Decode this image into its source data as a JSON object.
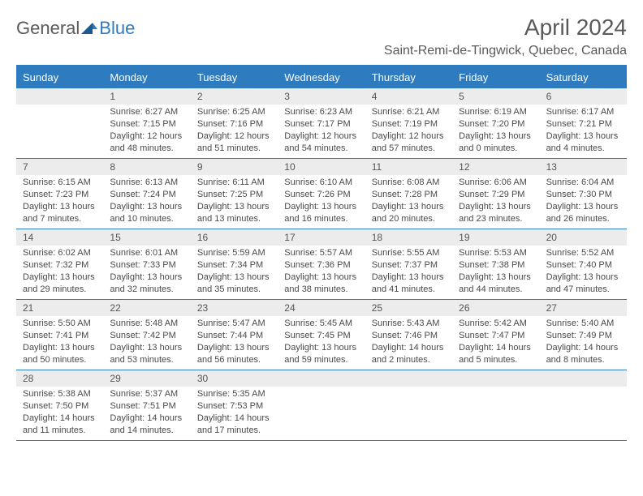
{
  "logo": {
    "part1": "General",
    "part2": "Blue"
  },
  "title": "April 2024",
  "location": "Saint-Remi-de-Tingwick, Quebec, Canada",
  "colors": {
    "accent": "#2e7bc0",
    "header_bg": "#2e7bc0",
    "header_text": "#ffffff",
    "daynum_bg": "#ececec",
    "text": "#4a4a4a",
    "border": "#2e7bc0"
  },
  "day_names": [
    "Sunday",
    "Monday",
    "Tuesday",
    "Wednesday",
    "Thursday",
    "Friday",
    "Saturday"
  ],
  "weeks": [
    [
      null,
      {
        "n": "1",
        "sr": "Sunrise: 6:27 AM",
        "ss": "Sunset: 7:15 PM",
        "dl": "Daylight: 12 hours and 48 minutes."
      },
      {
        "n": "2",
        "sr": "Sunrise: 6:25 AM",
        "ss": "Sunset: 7:16 PM",
        "dl": "Daylight: 12 hours and 51 minutes."
      },
      {
        "n": "3",
        "sr": "Sunrise: 6:23 AM",
        "ss": "Sunset: 7:17 PM",
        "dl": "Daylight: 12 hours and 54 minutes."
      },
      {
        "n": "4",
        "sr": "Sunrise: 6:21 AM",
        "ss": "Sunset: 7:19 PM",
        "dl": "Daylight: 12 hours and 57 minutes."
      },
      {
        "n": "5",
        "sr": "Sunrise: 6:19 AM",
        "ss": "Sunset: 7:20 PM",
        "dl": "Daylight: 13 hours and 0 minutes."
      },
      {
        "n": "6",
        "sr": "Sunrise: 6:17 AM",
        "ss": "Sunset: 7:21 PM",
        "dl": "Daylight: 13 hours and 4 minutes."
      }
    ],
    [
      {
        "n": "7",
        "sr": "Sunrise: 6:15 AM",
        "ss": "Sunset: 7:23 PM",
        "dl": "Daylight: 13 hours and 7 minutes."
      },
      {
        "n": "8",
        "sr": "Sunrise: 6:13 AM",
        "ss": "Sunset: 7:24 PM",
        "dl": "Daylight: 13 hours and 10 minutes."
      },
      {
        "n": "9",
        "sr": "Sunrise: 6:11 AM",
        "ss": "Sunset: 7:25 PM",
        "dl": "Daylight: 13 hours and 13 minutes."
      },
      {
        "n": "10",
        "sr": "Sunrise: 6:10 AM",
        "ss": "Sunset: 7:26 PM",
        "dl": "Daylight: 13 hours and 16 minutes."
      },
      {
        "n": "11",
        "sr": "Sunrise: 6:08 AM",
        "ss": "Sunset: 7:28 PM",
        "dl": "Daylight: 13 hours and 20 minutes."
      },
      {
        "n": "12",
        "sr": "Sunrise: 6:06 AM",
        "ss": "Sunset: 7:29 PM",
        "dl": "Daylight: 13 hours and 23 minutes."
      },
      {
        "n": "13",
        "sr": "Sunrise: 6:04 AM",
        "ss": "Sunset: 7:30 PM",
        "dl": "Daylight: 13 hours and 26 minutes."
      }
    ],
    [
      {
        "n": "14",
        "sr": "Sunrise: 6:02 AM",
        "ss": "Sunset: 7:32 PM",
        "dl": "Daylight: 13 hours and 29 minutes."
      },
      {
        "n": "15",
        "sr": "Sunrise: 6:01 AM",
        "ss": "Sunset: 7:33 PM",
        "dl": "Daylight: 13 hours and 32 minutes."
      },
      {
        "n": "16",
        "sr": "Sunrise: 5:59 AM",
        "ss": "Sunset: 7:34 PM",
        "dl": "Daylight: 13 hours and 35 minutes."
      },
      {
        "n": "17",
        "sr": "Sunrise: 5:57 AM",
        "ss": "Sunset: 7:36 PM",
        "dl": "Daylight: 13 hours and 38 minutes."
      },
      {
        "n": "18",
        "sr": "Sunrise: 5:55 AM",
        "ss": "Sunset: 7:37 PM",
        "dl": "Daylight: 13 hours and 41 minutes."
      },
      {
        "n": "19",
        "sr": "Sunrise: 5:53 AM",
        "ss": "Sunset: 7:38 PM",
        "dl": "Daylight: 13 hours and 44 minutes."
      },
      {
        "n": "20",
        "sr": "Sunrise: 5:52 AM",
        "ss": "Sunset: 7:40 PM",
        "dl": "Daylight: 13 hours and 47 minutes."
      }
    ],
    [
      {
        "n": "21",
        "sr": "Sunrise: 5:50 AM",
        "ss": "Sunset: 7:41 PM",
        "dl": "Daylight: 13 hours and 50 minutes."
      },
      {
        "n": "22",
        "sr": "Sunrise: 5:48 AM",
        "ss": "Sunset: 7:42 PM",
        "dl": "Daylight: 13 hours and 53 minutes."
      },
      {
        "n": "23",
        "sr": "Sunrise: 5:47 AM",
        "ss": "Sunset: 7:44 PM",
        "dl": "Daylight: 13 hours and 56 minutes."
      },
      {
        "n": "24",
        "sr": "Sunrise: 5:45 AM",
        "ss": "Sunset: 7:45 PM",
        "dl": "Daylight: 13 hours and 59 minutes."
      },
      {
        "n": "25",
        "sr": "Sunrise: 5:43 AM",
        "ss": "Sunset: 7:46 PM",
        "dl": "Daylight: 14 hours and 2 minutes."
      },
      {
        "n": "26",
        "sr": "Sunrise: 5:42 AM",
        "ss": "Sunset: 7:47 PM",
        "dl": "Daylight: 14 hours and 5 minutes."
      },
      {
        "n": "27",
        "sr": "Sunrise: 5:40 AM",
        "ss": "Sunset: 7:49 PM",
        "dl": "Daylight: 14 hours and 8 minutes."
      }
    ],
    [
      {
        "n": "28",
        "sr": "Sunrise: 5:38 AM",
        "ss": "Sunset: 7:50 PM",
        "dl": "Daylight: 14 hours and 11 minutes."
      },
      {
        "n": "29",
        "sr": "Sunrise: 5:37 AM",
        "ss": "Sunset: 7:51 PM",
        "dl": "Daylight: 14 hours and 14 minutes."
      },
      {
        "n": "30",
        "sr": "Sunrise: 5:35 AM",
        "ss": "Sunset: 7:53 PM",
        "dl": "Daylight: 14 hours and 17 minutes."
      },
      null,
      null,
      null,
      null
    ]
  ]
}
